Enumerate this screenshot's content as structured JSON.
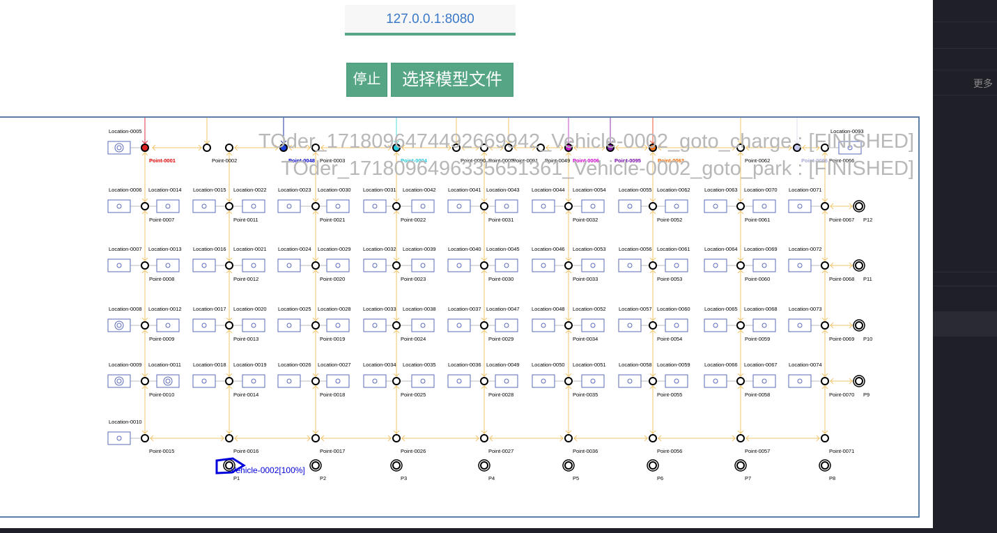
{
  "address": "127.0.0.1:8080",
  "buttons": {
    "stop": "停止",
    "select_model": "选择模型文件"
  },
  "sidebar": {
    "more": "更多"
  },
  "overlay_lines": [
    "TOder_1718096474492669942_Vehicle-0002_goto_charge : [FINISHED]",
    "TOder_1718096496335651361_Vehicle-0002_goto_park : [FINISHED]"
  ],
  "vehicle": {
    "label": "Vehicle-0002[100%]",
    "color": "#0000dd"
  },
  "colors": {
    "path": "#f2c46a",
    "location_border": "#5a6ab8",
    "point": "#000000",
    "frame": "#5b7fa6",
    "accent": "#56a686"
  },
  "top_row": {
    "points": [
      {
        "name": "Point-0001",
        "fill": "#dd2222",
        "label_color": "#dd0000"
      },
      {
        "name": "Point-0002",
        "fill": "#ffffff",
        "label_color": "#000000"
      },
      {
        "name": "Point-0048",
        "fill": "#1a3fd6",
        "label_color": "#0000cc"
      },
      {
        "name": "Point-0003",
        "fill": "#ffffff",
        "label_color": "#000000"
      },
      {
        "name": "Point-0004",
        "fill": "#22ccdd",
        "label_color": "#22c8dd"
      },
      {
        "name": "Point-0090",
        "fill": "#ffffff",
        "label_color": "#000000"
      },
      {
        "name": "Point-0005",
        "fill": "#ffffff",
        "label_color": "#000000"
      },
      {
        "name": "Point-0091",
        "fill": "#ffffff",
        "label_color": "#000000"
      },
      {
        "name": "Point-0049",
        "fill": "#ffffff",
        "label_color": "#000000"
      },
      {
        "name": "Point-0006",
        "fill": "#cc22cc",
        "label_color": "#cc00cc"
      },
      {
        "name": "Point-0095",
        "fill": "#8822aa",
        "label_color": "#7700aa"
      },
      {
        "name": "Point-0063",
        "fill": "#ee7722",
        "label_color": "#ee6600"
      },
      {
        "name": "Point-0062",
        "fill": "#ffffff",
        "label_color": "#000000"
      },
      {
        "name": "Point-0096",
        "fill": "#c8c8ee",
        "label_color": "#aaaadd"
      },
      {
        "name": "Point-0066",
        "fill": "#ffffff",
        "label_color": "#000000"
      }
    ],
    "locations": [
      "Location-0005",
      "Location-0093"
    ]
  },
  "grid_rows": [
    {
      "left_locs": [
        "Location-0006",
        "Location-0015",
        "Location-0023",
        "Location-0031",
        "Location-0041",
        "Location-0044",
        "Location-0055",
        "Location-0063",
        "Location-0071"
      ],
      "right_locs": [
        "Location-0014",
        "Location-0022",
        "Location-0030",
        "Location-0042",
        "Location-0043",
        "Location-0054",
        "Location-0062",
        "Location-0070"
      ],
      "points": [
        "Point-0007",
        "Point-0011",
        "Point-0021",
        "Point-0022",
        "Point-0031",
        "Point-0032",
        "Point-0052",
        "Point-0061",
        "Point-0067"
      ],
      "park": "P12"
    },
    {
      "left_locs": [
        "Location-0007",
        "Location-0016",
        "Location-0024",
        "Location-0032",
        "Location-0040",
        "Location-0046",
        "Location-0056",
        "Location-0064",
        "Location-0072"
      ],
      "right_locs": [
        "Location-0013",
        "Location-0021",
        "Location-0029",
        "Location-0039",
        "Location-0045",
        "Location-0053",
        "Location-0061",
        "Location-0069"
      ],
      "points": [
        "Point-0008",
        "Point-0012",
        "Point-0020",
        "Point-0023",
        "Point-0030",
        "Point-0033",
        "Point-0053",
        "Point-0060",
        "Point-0068"
      ],
      "park": "P11"
    },
    {
      "left_locs": [
        "Location-0008",
        "Location-0017",
        "Location-0025",
        "Location-0033",
        "Location-0037",
        "Location-0048",
        "Location-0057",
        "Location-0065",
        "Location-0073"
      ],
      "right_locs": [
        "Location-0012",
        "Location-0020",
        "Location-0028",
        "Location-0038",
        "Location-0047",
        "Location-0052",
        "Location-0060",
        "Location-0068"
      ],
      "points": [
        "Point-0009",
        "Point-0013",
        "Point-0019",
        "Point-0024",
        "Point-0029",
        "Point-0034",
        "Point-0054",
        "Point-0059",
        "Point-0069"
      ],
      "park": "P10"
    },
    {
      "left_locs": [
        "Location-0009",
        "Location-0018",
        "Location-0026",
        "Location-0034",
        "Location-0036",
        "Location-0050",
        "Location-0058",
        "Location-0066",
        "Location-0074"
      ],
      "right_locs": [
        "Location-0011",
        "Location-0019",
        "Location-0027",
        "Location-0035",
        "Location-0049",
        "Location-0051",
        "Location-0059",
        "Location-0067"
      ],
      "points": [
        "Point-0010",
        "Point-0014",
        "Point-0018",
        "Point-0025",
        "Point-0028",
        "Point-0035",
        "Point-0055",
        "Point-0058",
        "Point-0070"
      ],
      "park": "P9"
    }
  ],
  "bottom_row": {
    "location": "Location-0010",
    "points": [
      "Point-0015",
      "Point-0016",
      "Point-0017",
      "Point-0026",
      "Point-0027",
      "Point-0036",
      "Point-0056",
      "Point-0057",
      "Point-0071"
    ],
    "parks": [
      "P1",
      "P2",
      "P3",
      "P4",
      "P5",
      "P6",
      "P7",
      "P8"
    ]
  }
}
